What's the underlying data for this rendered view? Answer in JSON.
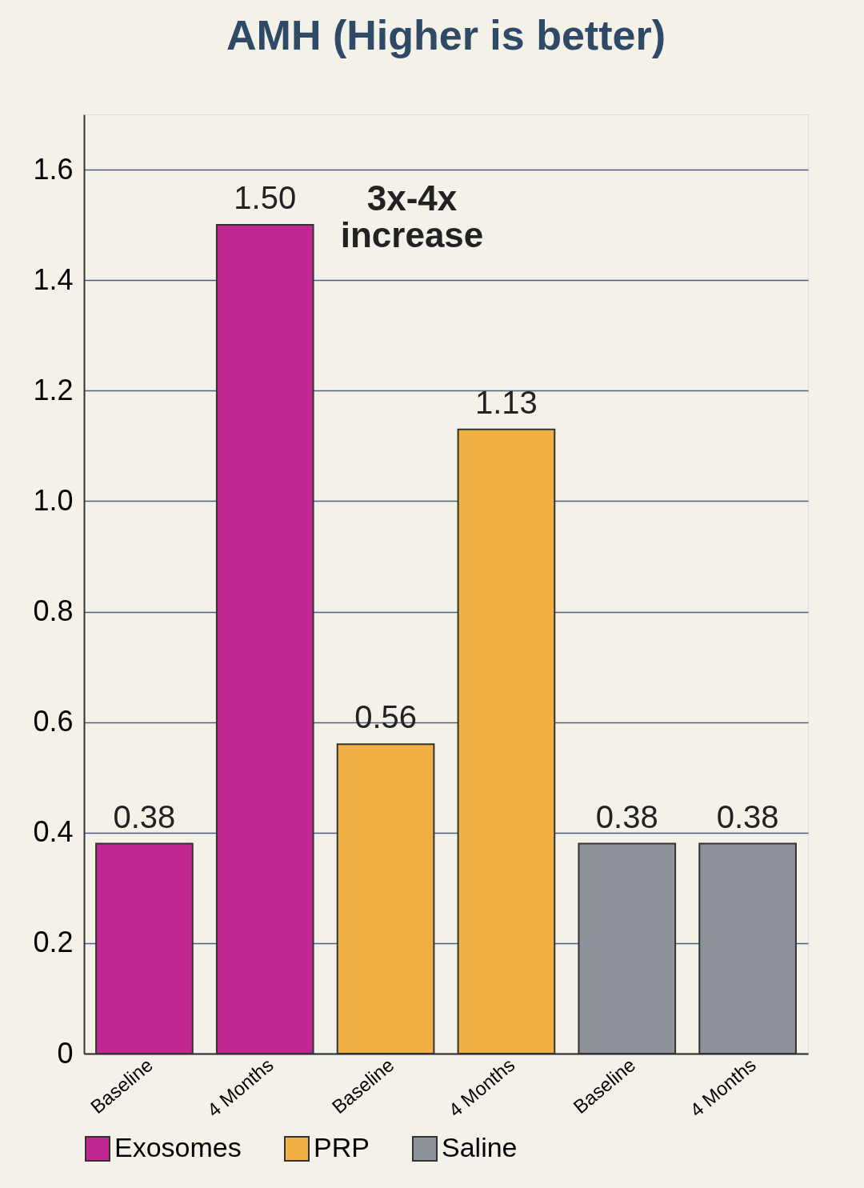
{
  "chart_data": {
    "type": "bar",
    "title": "AMH (Higher is better)",
    "categories": [
      "Baseline",
      "4 Months",
      "Baseline",
      "4 Months",
      "Baseline",
      "4 Months"
    ],
    "series": [
      {
        "name": "Exosomes",
        "color": "#c0288f",
        "values": [
          0.38,
          1.5,
          null,
          null,
          null,
          null
        ],
        "value_labels": [
          "0.38",
          "1.50",
          null,
          null,
          null,
          null
        ]
      },
      {
        "name": "PRP",
        "color": "#f0b043",
        "values": [
          null,
          null,
          0.56,
          1.13,
          null,
          null
        ],
        "value_labels": [
          null,
          null,
          "0.56",
          "1.13",
          null,
          null
        ]
      },
      {
        "name": "Saline",
        "color": "#8e939b",
        "values": [
          null,
          null,
          null,
          null,
          0.38,
          0.38
        ],
        "value_labels": [
          null,
          null,
          null,
          null,
          "0.38",
          "0.38"
        ]
      }
    ],
    "ylim": [
      0,
      1.7
    ],
    "yticks": [
      0,
      0.2,
      0.4,
      0.6,
      0.8,
      {
        "value": 1,
        "label": "1.0"
      },
      1.2,
      1.4,
      1.6
    ],
    "grid": "y",
    "legend": "bottom",
    "annotations": [
      "3x-4x\nincrease"
    ]
  }
}
